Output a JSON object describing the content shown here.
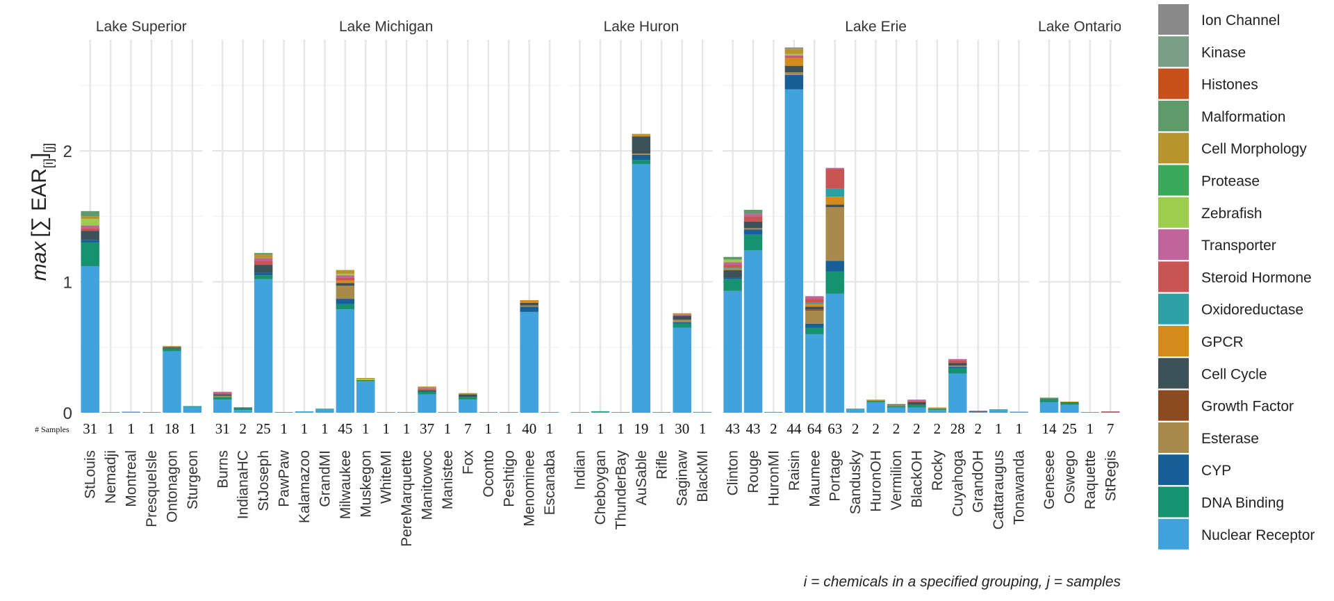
{
  "chart_data": {
    "type": "bar",
    "stacked": true,
    "ylabel_parts": {
      "max": "max",
      "sum": "∑",
      "ear": "EAR",
      "sub_i": "[i]",
      "sub_j": "[j]"
    },
    "caption": "i = chemicals in a specified grouping, j = samples",
    "samples_label": "# Samples",
    "y_ticks": [
      0,
      1,
      2
    ],
    "ylim": [
      0,
      2.85
    ],
    "grid": true,
    "legend_position": "right",
    "legend": [
      {
        "name": "Ion Channel",
        "color": "#8a8a8a"
      },
      {
        "name": "Kinase",
        "color": "#7a9e87"
      },
      {
        "name": "Histones",
        "color": "#c8511b"
      },
      {
        "name": "Malformation",
        "color": "#5e9a6a"
      },
      {
        "name": "Cell Morphology",
        "color": "#b6952f"
      },
      {
        "name": "Protease",
        "color": "#3aa85a"
      },
      {
        "name": "Zebrafish",
        "color": "#9dcd4d"
      },
      {
        "name": "Transporter",
        "color": "#c0649b"
      },
      {
        "name": "Steroid Hormone",
        "color": "#c85454"
      },
      {
        "name": "Oxidoreductase",
        "color": "#2e9fa3"
      },
      {
        "name": "GPCR",
        "color": "#d38c1c"
      },
      {
        "name": "Cell Cycle",
        "color": "#3d5159"
      },
      {
        "name": "Growth Factor",
        "color": "#8c4a20"
      },
      {
        "name": "Esterase",
        "color": "#a88a4c"
      },
      {
        "name": "CYP",
        "color": "#185f98"
      },
      {
        "name": "DNA Binding",
        "color": "#17926e"
      },
      {
        "name": "Nuclear Receptor",
        "color": "#42a3dc"
      }
    ],
    "facets": [
      {
        "name": "Lake Superior",
        "sites": [
          {
            "name": "StLouis",
            "samples": "31",
            "stack": {
              "Nuclear Receptor": 1.12,
              "DNA Binding": 0.18,
              "CYP": 0.02,
              "Cell Cycle": 0.07,
              "Steroid Hormone": 0.02,
              "Transporter": 0.02,
              "Zebrafish": 0.05,
              "Cell Morphology": 0.02,
              "Malformation": 0.04
            }
          },
          {
            "name": "Nemadji",
            "samples": "1",
            "stack": {
              "Nuclear Receptor": 0.002
            }
          },
          {
            "name": "Montreal",
            "samples": "1",
            "stack": {
              "Nuclear Receptor": 0.008
            }
          },
          {
            "name": "PresqueIsle",
            "samples": "1",
            "stack": {
              "Nuclear Receptor": 0.002
            }
          },
          {
            "name": "Ontonagon",
            "samples": "18",
            "stack": {
              "Nuclear Receptor": 0.47,
              "DNA Binding": 0.02,
              "Cell Cycle": 0.01,
              "Cell Morphology": 0.01
            }
          },
          {
            "name": "Sturgeon",
            "samples": "1",
            "stack": {
              "Nuclear Receptor": 0.045,
              "DNA Binding": 0.005
            }
          }
        ]
      },
      {
        "name": "Lake Michigan",
        "sites": [
          {
            "name": "Burns",
            "samples": "31",
            "stack": {
              "Nuclear Receptor": 0.1,
              "DNA Binding": 0.02,
              "Esterase": 0.01,
              "Cell Cycle": 0.01,
              "Steroid Hormone": 0.01,
              "Transporter": 0.01
            }
          },
          {
            "name": "IndianaHC",
            "samples": "2",
            "stack": {
              "Nuclear Receptor": 0.02,
              "DNA Binding": 0.015,
              "Cell Cycle": 0.005
            }
          },
          {
            "name": "StJoseph",
            "samples": "25",
            "stack": {
              "Nuclear Receptor": 1.02,
              "DNA Binding": 0.03,
              "CYP": 0.02,
              "Cell Morphology": 0.03,
              "Cell Cycle": 0.06,
              "Steroid Hormone": 0.03,
              "Transporter": 0.02,
              "Malformation": 0.01
            }
          },
          {
            "name": "PawPaw",
            "samples": "1",
            "stack": {
              "Nuclear Receptor": 0.004
            }
          },
          {
            "name": "Kalamazoo",
            "samples": "1",
            "stack": {
              "Nuclear Receptor": 0.01
            }
          },
          {
            "name": "GrandMI",
            "samples": "1",
            "stack": {
              "Nuclear Receptor": 0.025,
              "DNA Binding": 0.005
            }
          },
          {
            "name": "Milwaukee",
            "samples": "45",
            "stack": {
              "Nuclear Receptor": 0.79,
              "DNA Binding": 0.04,
              "CYP": 0.04,
              "Cell Cycle": 0.02,
              "Esterase": 0.1,
              "GPCR": 0.02,
              "Cell Morphology": 0.03,
              "Steroid Hormone": 0.02,
              "Transporter": 0.02,
              "Zebrafish": 0.01
            }
          },
          {
            "name": "Muskegon",
            "samples": "1",
            "stack": {
              "Nuclear Receptor": 0.24,
              "DNA Binding": 0.01,
              "Zebrafish": 0.01,
              "Cell Morphology": 0.005
            }
          },
          {
            "name": "WhiteMI",
            "samples": "1",
            "stack": {
              "Nuclear Receptor": 0.002
            }
          },
          {
            "name": "PereMarquette",
            "samples": "1",
            "stack": {
              "Nuclear Receptor": 0.002
            }
          },
          {
            "name": "Manitowoc",
            "samples": "37",
            "stack": {
              "Nuclear Receptor": 0.14,
              "DNA Binding": 0.02,
              "Cell Cycle": 0.01,
              "Cell Morphology": 0.01,
              "Steroid Hormone": 0.01,
              "Transporter": 0.01
            }
          },
          {
            "name": "Manistee",
            "samples": "1",
            "stack": {
              "Nuclear Receptor": 0.002
            }
          },
          {
            "name": "Fox",
            "samples": "7",
            "stack": {
              "Nuclear Receptor": 0.1,
              "DNA Binding": 0.02,
              "Cell Cycle": 0.02,
              "Cell Morphology": 0.01
            }
          },
          {
            "name": "Oconto",
            "samples": "1",
            "stack": {
              "Nuclear Receptor": 0.002
            }
          },
          {
            "name": "Peshtigo",
            "samples": "1",
            "stack": {
              "Nuclear Receptor": 0.004
            }
          },
          {
            "name": "Menominee",
            "samples": "40",
            "stack": {
              "Nuclear Receptor": 0.77,
              "CYP": 0.04,
              "Cell Cycle": 0.02,
              "GPCR": 0.02,
              "Esterase": 0.01
            }
          },
          {
            "name": "Escanaba",
            "samples": "1",
            "stack": {
              "Nuclear Receptor": 0.002
            }
          }
        ]
      },
      {
        "name": "Lake Huron",
        "sites": [
          {
            "name": "Indian",
            "samples": "1",
            "stack": {
              "Nuclear Receptor": 0.002
            }
          },
          {
            "name": "Cheboygan",
            "samples": "1",
            "stack": {
              "Nuclear Receptor": 0.006,
              "DNA Binding": 0.004
            }
          },
          {
            "name": "ThunderBay",
            "samples": "1",
            "stack": {
              "Nuclear Receptor": 0.003
            }
          },
          {
            "name": "AuSable",
            "samples": "19",
            "stack": {
              "Nuclear Receptor": 1.9,
              "DNA Binding": 0.03,
              "CYP": 0.04,
              "Cell Cycle": 0.13,
              "Esterase": 0.01,
              "GPCR": 0.01,
              "Cell Morphology": 0.01
            }
          },
          {
            "name": "Rifle",
            "samples": "1",
            "stack": {
              "Nuclear Receptor": 0.004
            }
          },
          {
            "name": "Saginaw",
            "samples": "30",
            "stack": {
              "Nuclear Receptor": 0.65,
              "DNA Binding": 0.03,
              "CYP": 0.01,
              "Cell Cycle": 0.03,
              "Esterase": 0.02,
              "Cell Morphology": 0.01,
              "Transporter": 0.01
            }
          },
          {
            "name": "BlackMI",
            "samples": "1",
            "stack": {
              "Nuclear Receptor": 0.006
            }
          }
        ]
      },
      {
        "name": "Lake Erie",
        "sites": [
          {
            "name": "Clinton",
            "samples": "43",
            "stack": {
              "Nuclear Receptor": 0.93,
              "DNA Binding": 0.09,
              "CYP": 0.01,
              "Cell Cycle": 0.06,
              "GPCR": 0.01,
              "Oxidoreductase": 0.01,
              "Steroid Hormone": 0.02,
              "Transporter": 0.02,
              "Zebrafish": 0.02,
              "Malformation": 0.02
            }
          },
          {
            "name": "Rouge",
            "samples": "43",
            "stack": {
              "Nuclear Receptor": 1.24,
              "DNA Binding": 0.12,
              "CYP": 0.04,
              "Cell Cycle": 0.05,
              "Esterase": 0.01,
              "Steroid Hormone": 0.04,
              "Transporter": 0.02,
              "Malformation": 0.03
            }
          },
          {
            "name": "HuronMI",
            "samples": "2",
            "stack": {
              "Nuclear Receptor": 0.006
            }
          },
          {
            "name": "Raisin",
            "samples": "44",
            "stack": {
              "Nuclear Receptor": 2.47,
              "CYP": 0.11,
              "Cell Cycle": 0.05,
              "Esterase": 0.02,
              "GPCR": 0.06,
              "Cell Morphology": 0.04,
              "Steroid Hormone": 0.01,
              "Transporter": 0.01,
              "Zebrafish": 0.01,
              "Ion Channel": 0.01
            }
          },
          {
            "name": "Maumee",
            "samples": "64",
            "stack": {
              "Nuclear Receptor": 0.6,
              "DNA Binding": 0.05,
              "CYP": 0.03,
              "Cell Cycle": 0.02,
              "Esterase": 0.1,
              "Growth Factor": 0.01,
              "GPCR": 0.02,
              "Oxidoreductase": 0.01,
              "Steroid Hormone": 0.03,
              "Transporter": 0.02
            }
          },
          {
            "name": "Portage",
            "samples": "63",
            "stack": {
              "Nuclear Receptor": 0.91,
              "DNA Binding": 0.17,
              "CYP": 0.08,
              "Esterase": 0.41,
              "Cell Cycle": 0.02,
              "GPCR": 0.06,
              "Oxidoreductase": 0.06,
              "Steroid Hormone": 0.15,
              "Transporter": 0.01
            }
          },
          {
            "name": "Sandusky",
            "samples": "2",
            "stack": {
              "Nuclear Receptor": 0.025,
              "DNA Binding": 0.005
            }
          },
          {
            "name": "HuronOH",
            "samples": "2",
            "stack": {
              "Nuclear Receptor": 0.08,
              "DNA Binding": 0.01,
              "Cell Morphology": 0.01
            }
          },
          {
            "name": "Vermilion",
            "samples": "2",
            "stack": {
              "Nuclear Receptor": 0.04,
              "DNA Binding": 0.01,
              "Esterase": 0.01,
              "Cell Cycle": 0.005
            }
          },
          {
            "name": "BlackOH",
            "samples": "2",
            "stack": {
              "Nuclear Receptor": 0.04,
              "DNA Binding": 0.02,
              "Cell Cycle": 0.02,
              "Steroid Hormone": 0.01,
              "Transporter": 0.01
            }
          },
          {
            "name": "Rocky",
            "samples": "2",
            "stack": {
              "Nuclear Receptor": 0.02,
              "DNA Binding": 0.01,
              "Cell Morphology": 0.01
            }
          },
          {
            "name": "Cuyahoga",
            "samples": "28",
            "stack": {
              "Nuclear Receptor": 0.3,
              "DNA Binding": 0.04,
              "CYP": 0.01,
              "Cell Cycle": 0.02,
              "Esterase": 0.01,
              "Steroid Hormone": 0.02,
              "Transporter": 0.01
            }
          },
          {
            "name": "GrandOH",
            "samples": "2",
            "stack": {
              "Nuclear Receptor": 0.006,
              "Transporter": 0.005,
              "Cell Cycle": 0.004
            }
          },
          {
            "name": "Cattaraugus",
            "samples": "1",
            "stack": {
              "Nuclear Receptor": 0.02,
              "DNA Binding": 0.005
            }
          },
          {
            "name": "Tonawanda",
            "samples": "1",
            "stack": {
              "Nuclear Receptor": 0.008
            }
          }
        ]
      },
      {
        "name": "Lake Ontario",
        "sites": [
          {
            "name": "Genesee",
            "samples": "14",
            "stack": {
              "Nuclear Receptor": 0.08,
              "DNA Binding": 0.02,
              "Cell Cycle": 0.005,
              "Malformation": 0.01
            }
          },
          {
            "name": "Oswego",
            "samples": "25",
            "stack": {
              "Nuclear Receptor": 0.06,
              "DNA Binding": 0.015,
              "Cell Cycle": 0.005,
              "Cell Morphology": 0.005
            }
          },
          {
            "name": "Raquette",
            "samples": "1",
            "stack": {
              "Nuclear Receptor": 0.002
            }
          },
          {
            "name": "StRegis",
            "samples": "7",
            "stack": {
              "Steroid Hormone": 0.008,
              "Nuclear Receptor": 0.002
            }
          }
        ]
      }
    ]
  }
}
